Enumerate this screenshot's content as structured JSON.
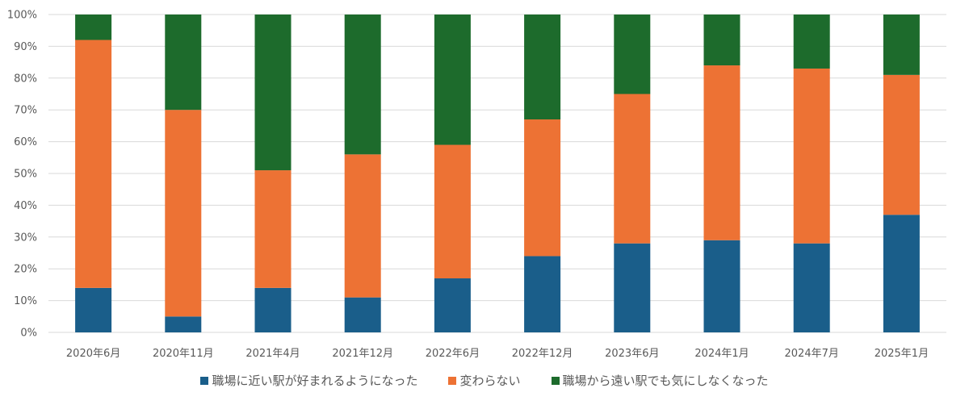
{
  "chart_data": {
    "type": "bar",
    "stacked": true,
    "normalized": true,
    "categories": [
      "2020年6月",
      "2020年11月",
      "2021年4月",
      "2021年12月",
      "2022年6月",
      "2022年12月",
      "2023年6月",
      "2024年1月",
      "2024年7月",
      "2025年1月"
    ],
    "series": [
      {
        "name": "職場に近い駅が好まれるようになった",
        "color": "#1a5e8a",
        "values": [
          14,
          5,
          14,
          11,
          17,
          24,
          28,
          29,
          28,
          37
        ]
      },
      {
        "name": "変わらない",
        "color": "#ed7234",
        "values": [
          78,
          65,
          37,
          45,
          42,
          43,
          47,
          55,
          55,
          44
        ]
      },
      {
        "name": "職場から遠い駅でも気にしなくなった",
        "color": "#1d6b2c",
        "values": [
          8,
          30,
          49,
          44,
          41,
          33,
          25,
          16,
          17,
          19
        ]
      }
    ],
    "ylim": [
      0,
      100
    ],
    "yticks": [
      "0%",
      "10%",
      "20%",
      "30%",
      "40%",
      "50%",
      "60%",
      "70%",
      "80%",
      "90%",
      "100%"
    ],
    "grid": true,
    "legend_position": "bottom"
  }
}
